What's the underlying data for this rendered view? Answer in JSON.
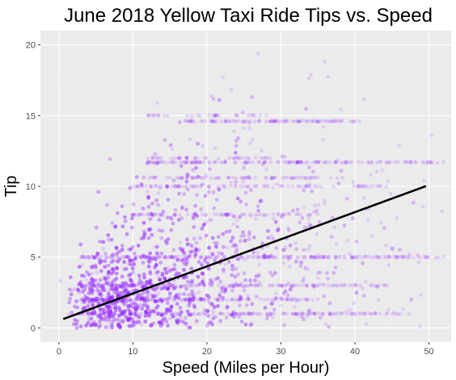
{
  "chart_data": {
    "type": "scatter",
    "title": "June 2018 Yellow Taxi Ride Tips vs. Speed",
    "xlabel": "Speed (Miles per Hour)",
    "ylabel": "Tip",
    "xlim": [
      -2.5,
      53
    ],
    "ylim": [
      -1,
      21
    ],
    "x_ticks": [
      0,
      10,
      20,
      30,
      40,
      50
    ],
    "y_ticks": [
      0,
      5,
      10,
      15,
      20
    ],
    "grid": true,
    "legend": "none",
    "colors": {
      "panel_background": "#ebebeb",
      "grid_major": "#ffffff",
      "grid_minor": "#f4f4f4",
      "points": "#9b30ff",
      "trend_line": "#000000"
    },
    "trend_line": {
      "x": [
        0.7,
        49.5
      ],
      "y": [
        0.65,
        10.0
      ]
    },
    "point_clusters": [
      {
        "x_center": 7,
        "y_center": 2,
        "x_spread": 3,
        "y_spread": 1.2,
        "count": 900
      },
      {
        "x_center": 12,
        "y_center": 3,
        "x_spread": 5,
        "y_spread": 2.2,
        "count": 1100
      },
      {
        "x_center": 18,
        "y_center": 5,
        "x_spread": 7,
        "y_spread": 3.5,
        "count": 800
      },
      {
        "x_center": 25,
        "y_center": 6,
        "x_spread": 10,
        "y_spread": 4.5,
        "count": 450
      },
      {
        "x_center": 35,
        "y_center": 8,
        "x_spread": 12,
        "y_spread": 6,
        "count": 150
      }
    ],
    "horizontal_bands": [
      {
        "y": 1.0,
        "x_range": [
          3,
          48
        ],
        "count": 150
      },
      {
        "y": 2.0,
        "x_range": [
          3,
          35
        ],
        "count": 120
      },
      {
        "y": 3.0,
        "x_range": [
          3,
          45
        ],
        "count": 120
      },
      {
        "y": 5.0,
        "x_range": [
          3,
          52
        ],
        "count": 220
      },
      {
        "y": 8.0,
        "x_range": [
          10,
          35
        ],
        "count": 70
      },
      {
        "y": 10.0,
        "x_range": [
          10,
          45
        ],
        "count": 90
      },
      {
        "y": 10.6,
        "x_range": [
          12,
          38
        ],
        "count": 70
      },
      {
        "y": 11.7,
        "x_range": [
          12,
          52
        ],
        "count": 150
      },
      {
        "y": 12.0,
        "x_range": [
          12,
          30
        ],
        "count": 40
      },
      {
        "y": 14.6,
        "x_range": [
          17,
          41
        ],
        "count": 100
      },
      {
        "y": 15.0,
        "x_range": [
          12,
          30
        ],
        "count": 30
      }
    ]
  }
}
